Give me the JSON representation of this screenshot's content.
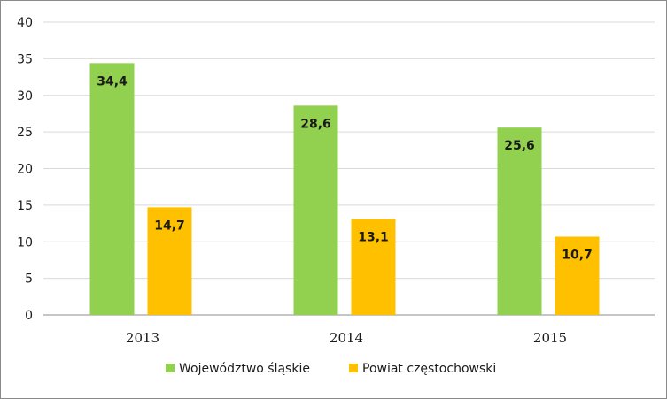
{
  "chart_data": {
    "type": "bar",
    "categories": [
      "2013",
      "2014",
      "2015"
    ],
    "series": [
      {
        "name": "Województwo śląskie",
        "values": [
          34.4,
          28.6,
          25.6
        ],
        "labels": [
          "34,4",
          "28,6",
          "25,6"
        ],
        "color": "#92d050"
      },
      {
        "name": "Powiat częstochowski",
        "values": [
          14.7,
          13.1,
          10.7
        ],
        "labels": [
          "14,7",
          "13,1",
          "10,7"
        ],
        "color": "#ffc000"
      }
    ],
    "ylim": [
      0,
      40
    ],
    "yticks": [
      "0",
      "5",
      "10",
      "15",
      "20",
      "25",
      "30",
      "35",
      "40"
    ],
    "grid": true,
    "legend_position": "bottom",
    "title": "",
    "xlabel": "",
    "ylabel": ""
  }
}
